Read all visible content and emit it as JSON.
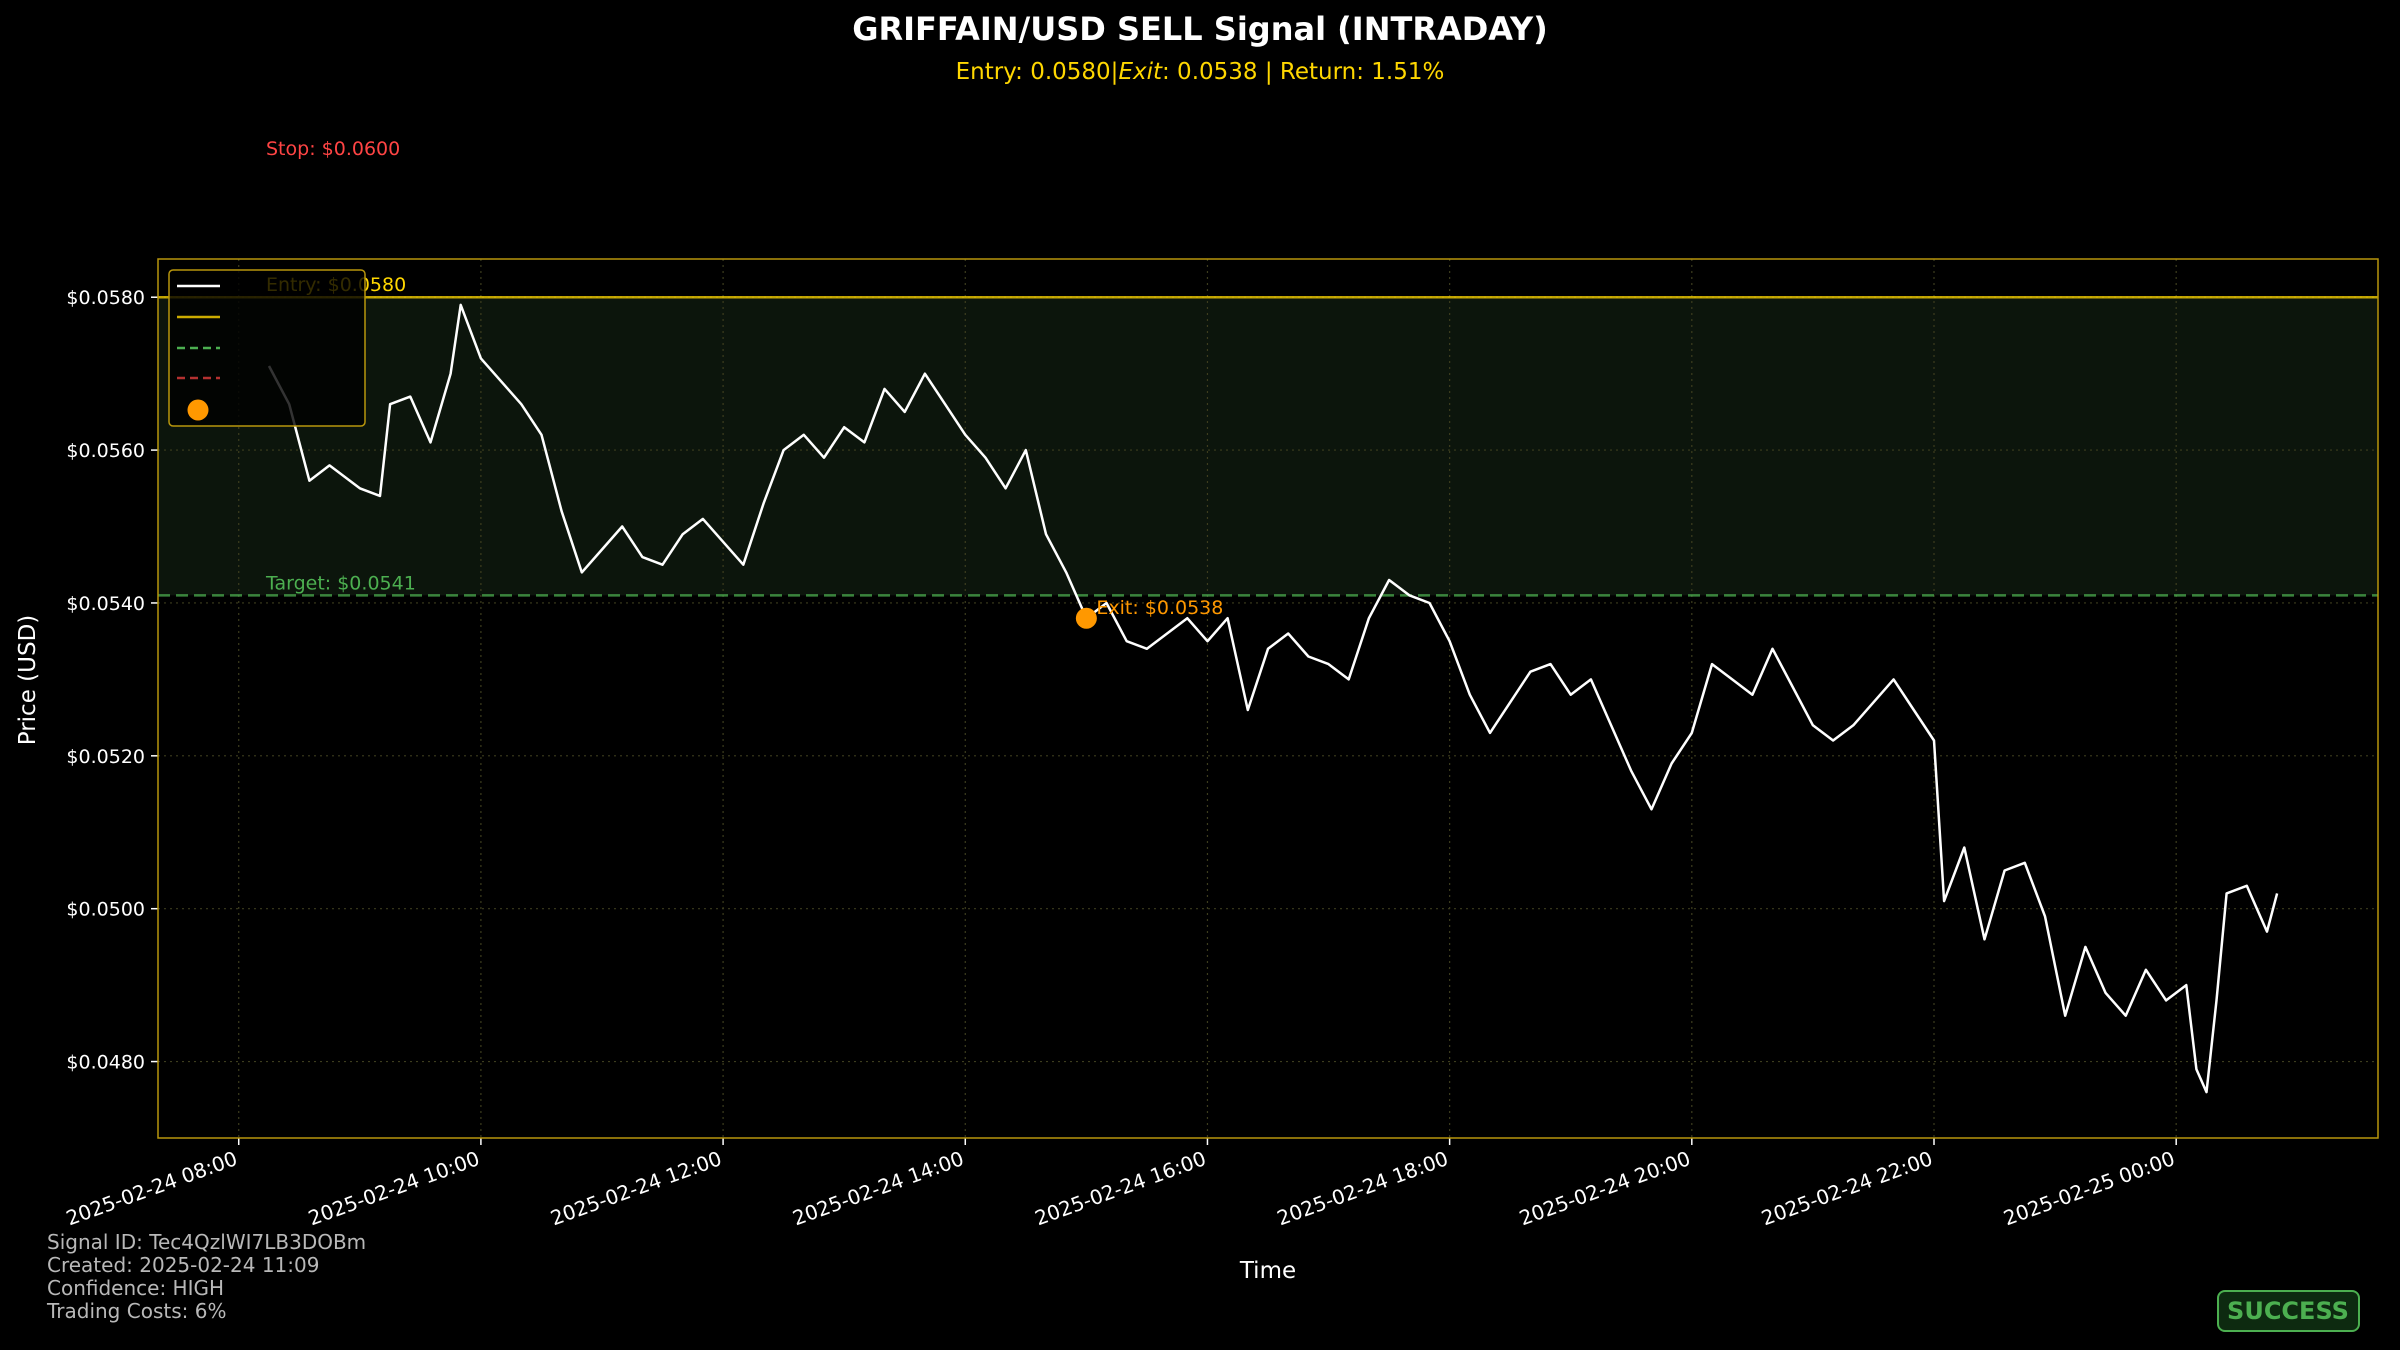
{
  "chart_data": {
    "type": "line",
    "title": "GRIFFAIN/USD SELL Signal (INTRADAY)",
    "subtitle": "Entry: 0.0580|$Exit$: 0.0538 | Return: 1.51%",
    "subtitle_parts": {
      "entry": "Entry: 0.0580|",
      "exit_italic": "Exit",
      "rest": ": 0.0538 | Return: 1.51%"
    },
    "xlabel": "Time",
    "ylabel": "Price (USD)",
    "ylim": [
      0.047,
      0.0585
    ],
    "xlim": [
      "2025-02-24 07:20",
      "2025-02-25 01:40"
    ],
    "x_ticks": [
      "2025-02-24 08:00",
      "2025-02-24 10:00",
      "2025-02-24 12:00",
      "2025-02-24 14:00",
      "2025-02-24 16:00",
      "2025-02-24 18:00",
      "2025-02-24 20:00",
      "2025-02-24 22:00",
      "2025-02-25 00:00"
    ],
    "y_ticks": [
      0.048,
      0.05,
      0.052,
      0.054,
      0.056,
      0.058
    ],
    "y_tick_labels": [
      "$0.0480",
      "$0.0500",
      "$0.0520",
      "$0.0540",
      "$0.0560",
      "$0.0580"
    ],
    "grid": true,
    "legend_placement": "top-left",
    "levels": {
      "entry": {
        "value": 0.058,
        "label": "Entry: $0.0580",
        "color": "#ffd700",
        "style": "solid"
      },
      "target": {
        "value": 0.0541,
        "label": "Target: $0.0541",
        "color": "#4caf50",
        "style": "dashed"
      },
      "stop": {
        "value": 0.06,
        "label": "Stop: $0.0600",
        "color": "#ff4444",
        "style": "dashed"
      }
    },
    "exit_point": {
      "time": "2025-02-24 15:00",
      "value": 0.0538,
      "label": "Exit: $0.0538",
      "color": "#ff9800"
    },
    "profit_zone": {
      "from": 0.0541,
      "to": 0.058
    },
    "series": [
      {
        "color": "#ffffff",
        "points": [
          [
            "2025-02-24 08:15",
            0.0571
          ],
          [
            "2025-02-24 08:25",
            0.0566
          ],
          [
            "2025-02-24 08:35",
            0.0556
          ],
          [
            "2025-02-24 08:45",
            0.0558
          ],
          [
            "2025-02-24 09:00",
            0.0555
          ],
          [
            "2025-02-24 09:10",
            0.0554
          ],
          [
            "2025-02-24 09:15",
            0.0566
          ],
          [
            "2025-02-24 09:25",
            0.0567
          ],
          [
            "2025-02-24 09:35",
            0.0561
          ],
          [
            "2025-02-24 09:45",
            0.057
          ],
          [
            "2025-02-24 09:50",
            0.0579
          ],
          [
            "2025-02-24 10:00",
            0.0572
          ],
          [
            "2025-02-24 10:10",
            0.0569
          ],
          [
            "2025-02-24 10:20",
            0.0566
          ],
          [
            "2025-02-24 10:30",
            0.0562
          ],
          [
            "2025-02-24 10:40",
            0.0552
          ],
          [
            "2025-02-24 10:50",
            0.0544
          ],
          [
            "2025-02-24 11:00",
            0.0547
          ],
          [
            "2025-02-24 11:10",
            0.055
          ],
          [
            "2025-02-24 11:20",
            0.0546
          ],
          [
            "2025-02-24 11:30",
            0.0545
          ],
          [
            "2025-02-24 11:40",
            0.0549
          ],
          [
            "2025-02-24 11:50",
            0.0551
          ],
          [
            "2025-02-24 12:00",
            0.0548
          ],
          [
            "2025-02-24 12:10",
            0.0545
          ],
          [
            "2025-02-24 12:20",
            0.0553
          ],
          [
            "2025-02-24 12:30",
            0.056
          ],
          [
            "2025-02-24 12:40",
            0.0562
          ],
          [
            "2025-02-24 12:50",
            0.0559
          ],
          [
            "2025-02-24 13:00",
            0.0563
          ],
          [
            "2025-02-24 13:10",
            0.0561
          ],
          [
            "2025-02-24 13:20",
            0.0568
          ],
          [
            "2025-02-24 13:30",
            0.0565
          ],
          [
            "2025-02-24 13:40",
            0.057
          ],
          [
            "2025-02-24 13:50",
            0.0566
          ],
          [
            "2025-02-24 14:00",
            0.0562
          ],
          [
            "2025-02-24 14:10",
            0.0559
          ],
          [
            "2025-02-24 14:20",
            0.0555
          ],
          [
            "2025-02-24 14:30",
            0.056
          ],
          [
            "2025-02-24 14:40",
            0.0549
          ],
          [
            "2025-02-24 14:50",
            0.0544
          ],
          [
            "2025-02-24 15:00",
            0.0538
          ],
          [
            "2025-02-24 15:10",
            0.054
          ],
          [
            "2025-02-24 15:20",
            0.0535
          ],
          [
            "2025-02-24 15:30",
            0.0534
          ],
          [
            "2025-02-24 15:40",
            0.0536
          ],
          [
            "2025-02-24 15:50",
            0.0538
          ],
          [
            "2025-02-24 16:00",
            0.0535
          ],
          [
            "2025-02-24 16:10",
            0.0538
          ],
          [
            "2025-02-24 16:20",
            0.0526
          ],
          [
            "2025-02-24 16:30",
            0.0534
          ],
          [
            "2025-02-24 16:40",
            0.0536
          ],
          [
            "2025-02-24 16:50",
            0.0533
          ],
          [
            "2025-02-24 17:00",
            0.0532
          ],
          [
            "2025-02-24 17:10",
            0.053
          ],
          [
            "2025-02-24 17:20",
            0.0538
          ],
          [
            "2025-02-24 17:30",
            0.0543
          ],
          [
            "2025-02-24 17:40",
            0.0541
          ],
          [
            "2025-02-24 17:50",
            0.054
          ],
          [
            "2025-02-24 18:00",
            0.0535
          ],
          [
            "2025-02-24 18:10",
            0.0528
          ],
          [
            "2025-02-24 18:20",
            0.0523
          ],
          [
            "2025-02-24 18:30",
            0.0527
          ],
          [
            "2025-02-24 18:40",
            0.0531
          ],
          [
            "2025-02-24 18:50",
            0.0532
          ],
          [
            "2025-02-24 19:00",
            0.0528
          ],
          [
            "2025-02-24 19:10",
            0.053
          ],
          [
            "2025-02-24 19:20",
            0.0524
          ],
          [
            "2025-02-24 19:30",
            0.0518
          ],
          [
            "2025-02-24 19:40",
            0.0513
          ],
          [
            "2025-02-24 19:50",
            0.0519
          ],
          [
            "2025-02-24 20:00",
            0.0523
          ],
          [
            "2025-02-24 20:10",
            0.0532
          ],
          [
            "2025-02-24 20:20",
            0.053
          ],
          [
            "2025-02-24 20:30",
            0.0528
          ],
          [
            "2025-02-24 20:40",
            0.0534
          ],
          [
            "2025-02-24 20:50",
            0.0529
          ],
          [
            "2025-02-24 21:00",
            0.0524
          ],
          [
            "2025-02-24 21:10",
            0.0522
          ],
          [
            "2025-02-24 21:20",
            0.0524
          ],
          [
            "2025-02-24 21:30",
            0.0527
          ],
          [
            "2025-02-24 21:40",
            0.053
          ],
          [
            "2025-02-24 21:50",
            0.0526
          ],
          [
            "2025-02-24 22:00",
            0.0522
          ],
          [
            "2025-02-24 22:05",
            0.0501
          ],
          [
            "2025-02-24 22:15",
            0.0508
          ],
          [
            "2025-02-24 22:25",
            0.0496
          ],
          [
            "2025-02-24 22:35",
            0.0505
          ],
          [
            "2025-02-24 22:45",
            0.0506
          ],
          [
            "2025-02-24 22:55",
            0.0499
          ],
          [
            "2025-02-24 23:05",
            0.0486
          ],
          [
            "2025-02-24 23:15",
            0.0495
          ],
          [
            "2025-02-24 23:25",
            0.0489
          ],
          [
            "2025-02-24 23:35",
            0.0486
          ],
          [
            "2025-02-24 23:45",
            0.0492
          ],
          [
            "2025-02-24 23:55",
            0.0488
          ],
          [
            "2025-02-25 00:05",
            0.049
          ],
          [
            "2025-02-25 00:10",
            0.0479
          ],
          [
            "2025-02-25 00:15",
            0.0476
          ],
          [
            "2025-02-25 00:20",
            0.0488
          ],
          [
            "2025-02-25 00:25",
            0.0502
          ],
          [
            "2025-02-25 00:35",
            0.0503
          ],
          [
            "2025-02-25 00:40",
            0.05
          ],
          [
            "2025-02-25 00:45",
            0.0497
          ],
          [
            "2025-02-25 00:50",
            0.0502
          ]
        ]
      }
    ]
  },
  "footer": {
    "signal_id": "Signal ID: Tec4QzlWI7LB3DOBm",
    "created": "Created: 2025-02-24 11:09",
    "confidence": "Confidence: HIGH",
    "trading_costs": "Trading Costs: 6%"
  },
  "badge": {
    "text": "SUCCESS",
    "color": "#4caf50"
  }
}
